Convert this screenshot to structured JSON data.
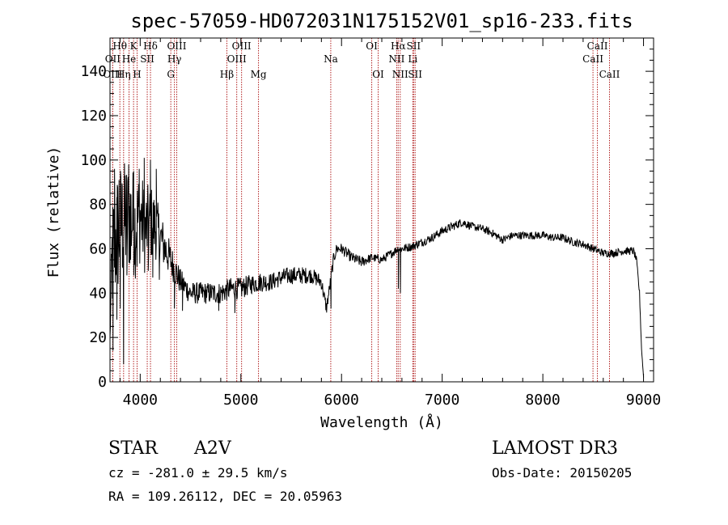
{
  "chart_data": {
    "type": "line",
    "title": "spec-57059-HD072031N175152V01_sp16-233.fits",
    "xlabel": "Wavelength (Å)",
    "ylabel": "Flux (relative)",
    "xlim": [
      3700,
      9100
    ],
    "ylim": [
      0,
      155
    ],
    "xticks": [
      4000,
      5000,
      6000,
      7000,
      8000,
      9000
    ],
    "xtick_labels": [
      "4000",
      "5000",
      "6000",
      "7000",
      "8000",
      "9000"
    ],
    "yticks": [
      0,
      20,
      40,
      60,
      80,
      100,
      120,
      140
    ],
    "ytick_labels": [
      "0",
      "20",
      "40",
      "60",
      "80",
      "100",
      "120",
      "140"
    ],
    "grid": false,
    "line_color": "#000000",
    "marker_line_color": "#b22222",
    "spectrum_anchors": {
      "x": [
        3700,
        3720,
        3760,
        3800,
        3850,
        3900,
        3950,
        4000,
        4050,
        4100,
        4150,
        4200,
        4300,
        4400,
        4500,
        4600,
        4700,
        4800,
        4900,
        5000,
        5100,
        5200,
        5300,
        5400,
        5500,
        5600,
        5700,
        5800,
        5850,
        5880,
        5920,
        5950,
        6000,
        6100,
        6200,
        6300,
        6400,
        6500,
        6560,
        6600,
        6700,
        6800,
        6900,
        7000,
        7100,
        7200,
        7300,
        7400,
        7500,
        7600,
        7700,
        7800,
        7900,
        8000,
        8100,
        8200,
        8300,
        8400,
        8500,
        8600,
        8700,
        8800,
        8900,
        8930,
        8960,
        8980,
        9000
      ],
      "y": [
        20,
        55,
        65,
        70,
        72,
        75,
        70,
        75,
        68,
        72,
        70,
        65,
        55,
        45,
        40,
        40,
        40,
        40,
        42,
        42,
        44,
        45,
        45,
        47,
        48,
        48,
        48,
        45,
        33,
        42,
        55,
        60,
        60,
        56,
        54,
        56,
        55,
        58,
        60,
        60,
        61,
        63,
        65,
        68,
        70,
        72,
        70,
        69,
        67,
        64,
        66,
        66,
        66,
        66,
        65,
        65,
        63,
        62,
        60,
        58,
        58,
        59,
        59,
        55,
        40,
        15,
        2
      ],
      "noise": [
        0,
        28,
        30,
        30,
        28,
        26,
        24,
        22,
        20,
        18,
        15,
        12,
        8,
        6,
        5,
        5,
        5,
        5,
        5,
        5,
        4.5,
        4.5,
        4,
        4,
        4,
        4,
        3.5,
        3.5,
        3,
        3,
        3,
        2.5,
        2.5,
        2.5,
        2.5,
        2,
        2,
        2,
        2,
        2,
        2,
        2,
        2,
        2,
        2,
        2,
        1.8,
        1.8,
        1.8,
        1.8,
        1.8,
        1.8,
        1.8,
        1.8,
        1.8,
        1.8,
        1.8,
        1.8,
        1.8,
        1.8,
        1.8,
        1.8,
        1.8,
        1.5,
        1.5,
        1,
        0
      ]
    },
    "spectrum_spikes": [
      {
        "x": 3730,
        "y": 14
      },
      {
        "x": 3745,
        "y": 96
      },
      {
        "x": 3768,
        "y": 28
      },
      {
        "x": 3790,
        "y": 91
      },
      {
        "x": 3802,
        "y": 33
      },
      {
        "x": 3822,
        "y": 88
      },
      {
        "x": 3835,
        "y": 8
      },
      {
        "x": 3850,
        "y": 93
      },
      {
        "x": 3868,
        "y": 48
      },
      {
        "x": 3886,
        "y": 98
      },
      {
        "x": 3905,
        "y": 55
      },
      {
        "x": 3935,
        "y": 95
      },
      {
        "x": 3968,
        "y": 52
      },
      {
        "x": 3990,
        "y": 96
      },
      {
        "x": 4040,
        "y": 101
      },
      {
        "x": 4080,
        "y": 50
      },
      {
        "x": 4102,
        "y": 100
      },
      {
        "x": 4125,
        "y": 47
      },
      {
        "x": 4160,
        "y": 96
      },
      {
        "x": 4190,
        "y": 46
      },
      {
        "x": 4340,
        "y": 33
      },
      {
        "x": 4420,
        "y": 32
      },
      {
        "x": 4780,
        "y": 32
      },
      {
        "x": 4940,
        "y": 31
      },
      {
        "x": 5895,
        "y": 33
      },
      {
        "x": 6565,
        "y": 42
      },
      {
        "x": 6585,
        "y": 40
      }
    ],
    "spectral_lines": [
      {
        "label": "Hθ",
        "wavelength": 3798,
        "row": 1
      },
      {
        "label": "OII",
        "wavelength": 3727,
        "row": 2
      },
      {
        "label": "OIII",
        "wavelength": 3727,
        "row": 3
      },
      {
        "label": "He",
        "wavelength": 3889,
        "row": 2
      },
      {
        "label": "Hη",
        "wavelength": 3835,
        "row": 3
      },
      {
        "label": "K",
        "wavelength": 3934,
        "row": 1
      },
      {
        "label": "SII",
        "wavelength": 4070,
        "row": 2
      },
      {
        "label": "H",
        "wavelength": 3969,
        "row": 3
      },
      {
        "label": "Hδ",
        "wavelength": 4102,
        "row": 1
      },
      {
        "label": "OIII",
        "wavelength": 4363,
        "row": 1
      },
      {
        "label": "Hγ",
        "wavelength": 4340,
        "row": 2
      },
      {
        "label": "G",
        "wavelength": 4304,
        "row": 3
      },
      {
        "label": "Hβ",
        "wavelength": 4861,
        "row": 3
      },
      {
        "label": "OIII",
        "wavelength": 5007,
        "row": 1
      },
      {
        "label": "OIII",
        "wavelength": 4959,
        "row": 2
      },
      {
        "label": "Mg",
        "wavelength": 5175,
        "row": 3
      },
      {
        "label": "Na",
        "wavelength": 5893,
        "row": 2
      },
      {
        "label": "OI",
        "wavelength": 6300,
        "row": 1
      },
      {
        "label": "OI",
        "wavelength": 6364,
        "row": 3
      },
      {
        "label": "Hα",
        "wavelength": 6563,
        "row": 1
      },
      {
        "label": "NII",
        "wavelength": 6548,
        "row": 2
      },
      {
        "label": "NII",
        "wavelength": 6583,
        "row": 3
      },
      {
        "label": "SII",
        "wavelength": 6716,
        "row": 1
      },
      {
        "label": "Li",
        "wavelength": 6708,
        "row": 2
      },
      {
        "label": "SII",
        "wavelength": 6731,
        "row": 3
      },
      {
        "label": "CaII",
        "wavelength": 8542,
        "row": 1
      },
      {
        "label": "CaII",
        "wavelength": 8498,
        "row": 2
      },
      {
        "label": "CaII",
        "wavelength": 8662,
        "row": 3
      }
    ]
  },
  "info": {
    "object_class": "STAR",
    "subclass": "A2V",
    "survey": "LAMOST DR3",
    "cz_text": "cz = -281.0 ± 29.5 km/s",
    "obs_date_text": "Obs-Date: 20150205",
    "coords_text": "RA = 109.26112, DEC =  20.05963"
  }
}
